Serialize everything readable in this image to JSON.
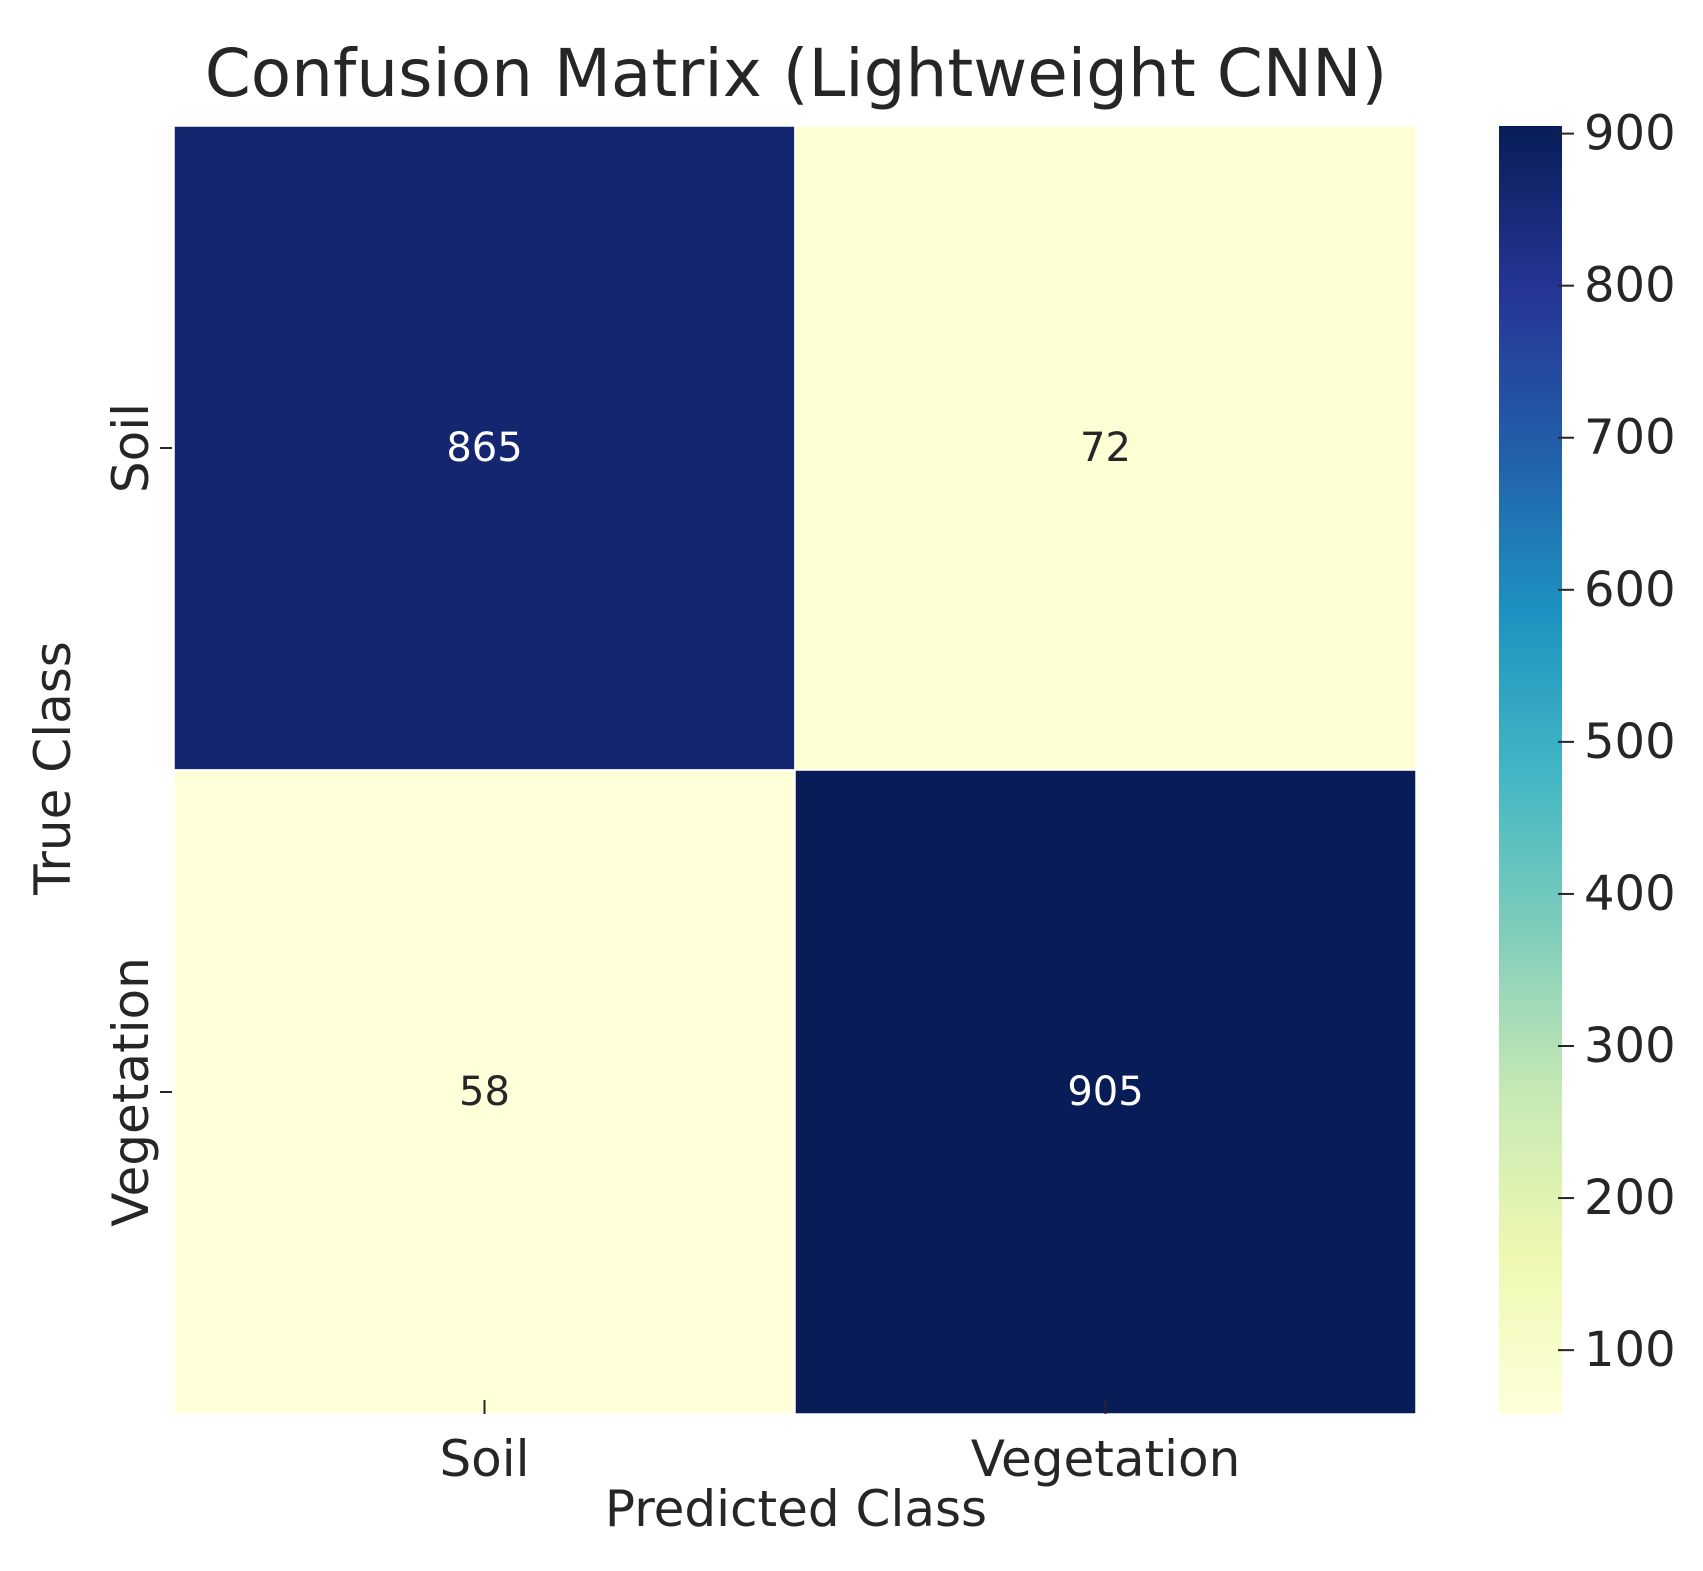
{
  "chart_data": {
    "type": "heatmap",
    "title": "Confusion Matrix (Lightweight CNN)",
    "xlabel": "Predicted Class",
    "ylabel": "True Class",
    "x_categories": [
      "Soil",
      "Vegetation"
    ],
    "y_categories": [
      "Soil",
      "Vegetation"
    ],
    "values": [
      [
        865,
        72
      ],
      [
        58,
        905
      ]
    ],
    "colormap": "YlGnBu",
    "colorbar": {
      "vmin": 58,
      "vmax": 905,
      "ticks": [
        100,
        200,
        300,
        400,
        500,
        600,
        700,
        800,
        900
      ],
      "colors": [
        "#ffffd9",
        "#edf8b1",
        "#c7e9b4",
        "#7fcdbb",
        "#41b6c4",
        "#1d91c0",
        "#225ea8",
        "#253494",
        "#081d58"
      ]
    },
    "grid": false,
    "legend": "colorbar right"
  }
}
